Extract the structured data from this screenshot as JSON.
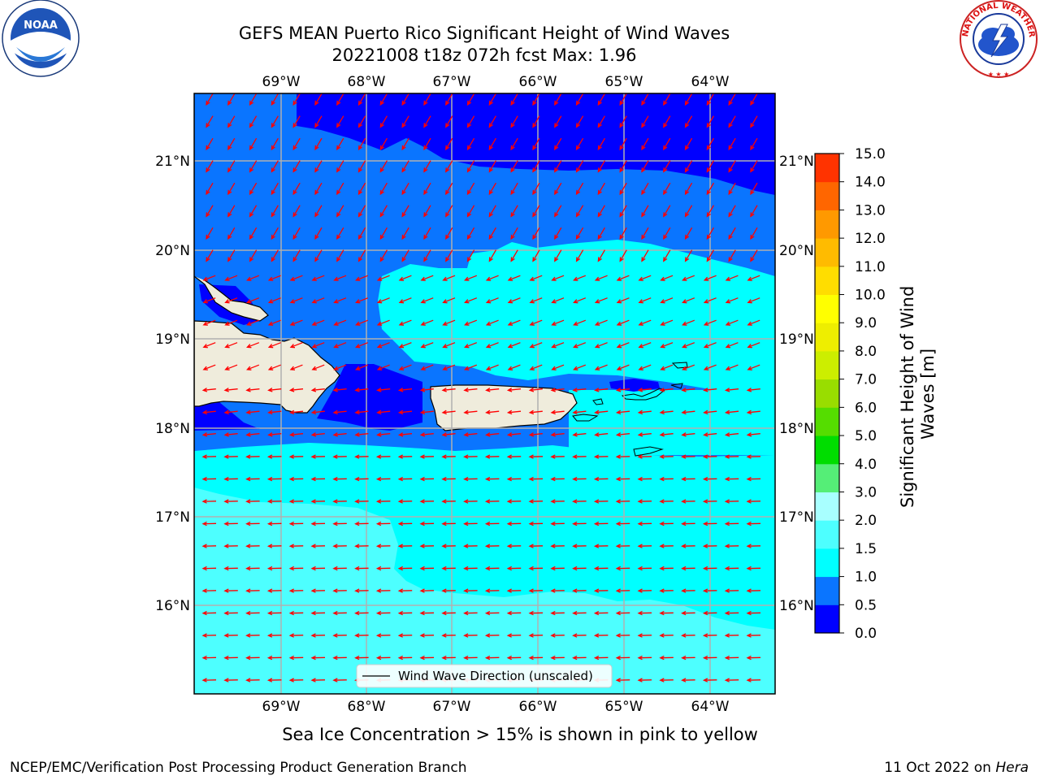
{
  "title": {
    "line1": "GEFS MEAN Puerto Rico Significant Height of Wind Waves",
    "line2": "20221008 t18z 072h fcst   Max: 1.96"
  },
  "logos": {
    "noaa": "NOAA",
    "nws": "NATIONAL WEATHER SERVICE"
  },
  "map": {
    "lon_labels": [
      "69°W",
      "68°W",
      "67°W",
      "66°W",
      "65°W",
      "64°W"
    ],
    "lat_labels": [
      "21°N",
      "20°N",
      "19°N",
      "18°N",
      "17°N",
      "16°N"
    ],
    "legend_label": "Wind Wave Direction (unscaled)",
    "arrow_color": "#ff0000",
    "land_color": "#efecdc"
  },
  "colorbar": {
    "label": "Significant Height of Wind Waves [m]",
    "ticks": [
      "0.0",
      "0.5",
      "1.0",
      "1.5",
      "2.0",
      "3.0",
      "4.0",
      "5.0",
      "6.0",
      "7.0",
      "8.0",
      "9.0",
      "10.0",
      "11.0",
      "12.0",
      "13.0",
      "14.0",
      "15.0"
    ],
    "colors": [
      "#0000ff",
      "#0a75ff",
      "#00ffff",
      "#4dffff",
      "#a8ffff",
      "#55ee77",
      "#00dd00",
      "#55dd00",
      "#99dd00",
      "#ccee00",
      "#eeee00",
      "#ffff00",
      "#ffdd00",
      "#ffbb00",
      "#ff9900",
      "#ff6600",
      "#ff3300",
      "#ff0000"
    ]
  },
  "footer": {
    "note": "Sea Ice Concentration > 15% is shown in pink to yellow",
    "left": "NCEP/EMC/Verification Post Processing Product Generation Branch",
    "right_date": "11 Oct 2022 on ",
    "right_host": "Hera"
  }
}
